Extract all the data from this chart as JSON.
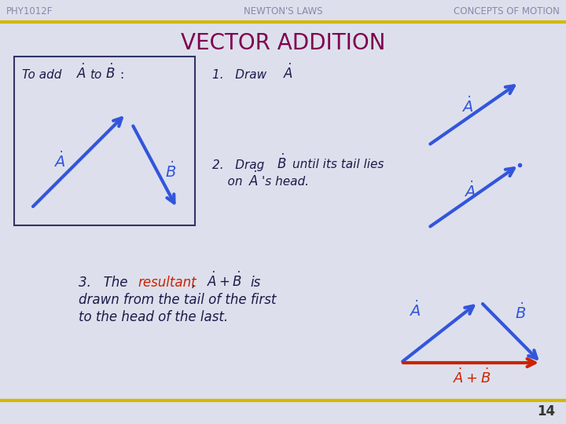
{
  "bg_color": "#dde0ec",
  "header_text_color": "#8888aa",
  "header_left": "PHY1012F",
  "header_center": "NEWTON'S LAWS",
  "header_right": "CONCEPTS OF MOTION",
  "header_line_color": "#d4b800",
  "title": "VECTOR ADDITION",
  "title_color": "#800050",
  "body_text_color": "#1a1a4a",
  "resultant_word_color": "#cc2200",
  "arrow_color": "#3355dd",
  "resultant_arrow_color": "#cc2200",
  "footer_text": "14",
  "footer_color": "#333333"
}
